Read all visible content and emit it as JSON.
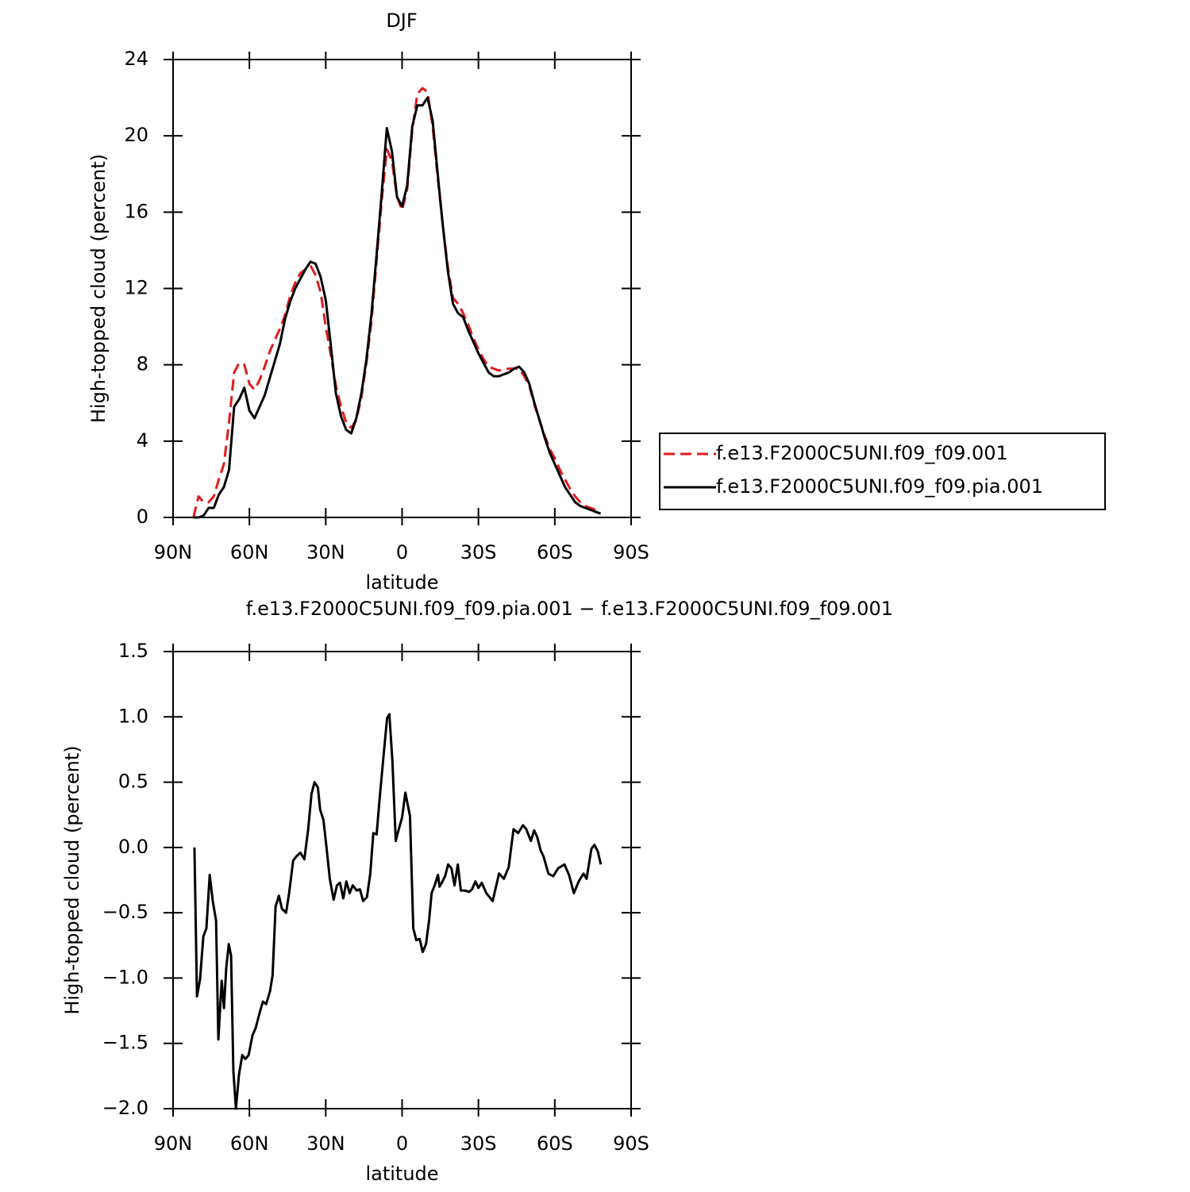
{
  "chart_data": [
    {
      "type": "line",
      "title": "DJF",
      "x_label": "latitude",
      "y_label": "High-topped cloud (percent)",
      "x": [
        82,
        80,
        78,
        76,
        74,
        72,
        70,
        68,
        66,
        64,
        62,
        60,
        58,
        56,
        54,
        52,
        50,
        48,
        46,
        44,
        42,
        40,
        38,
        36,
        34,
        32,
        30,
        28,
        26,
        24,
        22,
        20,
        18,
        16,
        14,
        12,
        10,
        8,
        6,
        4,
        2,
        0,
        -2,
        -4,
        -6,
        -8,
        -10,
        -12,
        -14,
        -16,
        -18,
        -20,
        -22,
        -24,
        -26,
        -28,
        -30,
        -32,
        -34,
        -36,
        -38,
        -40,
        -42,
        -44,
        -46,
        -48,
        -50,
        -52,
        -54,
        -56,
        -58,
        -60,
        -62,
        -64,
        -66,
        -68,
        -70,
        -72,
        -74,
        -76,
        -78
      ],
      "xlim": [
        90,
        -90
      ],
      "xticks": [
        {
          "value": 90,
          "label": "90N"
        },
        {
          "value": 60,
          "label": "60N"
        },
        {
          "value": 30,
          "label": "30N"
        },
        0,
        {
          "value": -30,
          "label": "30S"
        },
        {
          "value": -60,
          "label": "60S"
        },
        {
          "value": -90,
          "label": "90S"
        }
      ],
      "ylim": [
        0,
        24
      ],
      "yticks": [
        0,
        4,
        8,
        12,
        16,
        20,
        24
      ],
      "legend": "right",
      "series": [
        {
          "name": "f.e13.F2000C5UNI.f09_f09.001",
          "color": "#e41a1c",
          "style": "dashed",
          "values": [
            0,
            1.1,
            0.8,
            0.8,
            1.1,
            2.0,
            2.8,
            5.0,
            7.6,
            8.1,
            8.0,
            7.0,
            6.7,
            7.2,
            7.9,
            8.7,
            9.3,
            9.9,
            10.6,
            11.6,
            12.3,
            12.8,
            13.0,
            13.2,
            12.7,
            11.8,
            10.0,
            8.5,
            6.9,
            5.8,
            5.0,
            4.7,
            5.1,
            6.3,
            8.1,
            10.3,
            13.5,
            16.6,
            19.3,
            18.7,
            16.8,
            16.1,
            17.2,
            20.3,
            22.2,
            22.5,
            22.3,
            20.5,
            17.8,
            15.3,
            13.1,
            11.5,
            11.2,
            10.7,
            10.1,
            9.4,
            8.8,
            8.3,
            7.9,
            7.8,
            7.7,
            7.75,
            7.8,
            7.8,
            7.8,
            7.4,
            6.9,
            5.9,
            5.1,
            4.3,
            3.6,
            3.1,
            2.5,
            2.0,
            1.5,
            1.1,
            0.8,
            0.6,
            0.5,
            0.4,
            0.3
          ]
        },
        {
          "name": "f.e13.F2000C5UNI.f09_f09.pia.001",
          "color": "#000000",
          "style": "solid",
          "values": [
            0.0,
            0.0,
            0.1,
            0.5,
            0.5,
            1.2,
            1.6,
            2.5,
            5.8,
            6.2,
            6.8,
            5.6,
            5.2,
            5.8,
            6.4,
            7.3,
            8.2,
            9.1,
            10.4,
            11.3,
            12.0,
            12.5,
            13.0,
            13.4,
            13.3,
            12.6,
            11.4,
            9.0,
            6.5,
            5.3,
            4.6,
            4.4,
            5.2,
            6.5,
            8.3,
            10.7,
            13.8,
            17.0,
            20.4,
            19.2,
            16.8,
            16.3,
            17.4,
            20.5,
            21.6,
            21.6,
            22.0,
            20.8,
            18.0,
            15.3,
            12.9,
            11.2,
            10.7,
            10.5,
            9.8,
            9.2,
            8.6,
            8.1,
            7.6,
            7.4,
            7.4,
            7.5,
            7.6,
            7.8,
            7.9,
            7.6,
            7.0,
            6.0,
            5.1,
            4.2,
            3.4,
            2.8,
            2.2,
            1.6,
            1.2,
            0.8,
            0.6,
            0.5,
            0.4,
            0.3,
            0.2
          ]
        }
      ]
    },
    {
      "type": "line",
      "title": "f.e13.F2000C5UNI.f09_f09.pia.001 − f.e13.F2000C5UNI.f09_f09.001",
      "x_label": "latitude",
      "y_label": "High-topped cloud (percent)",
      "x": [
        81.6,
        80.6,
        79.4,
        78.1,
        76.9,
        75.6,
        74.4,
        73.1,
        72.2,
        70.9,
        70.0,
        69.1,
        68.1,
        67.2,
        66.3,
        65.3,
        64.1,
        62.8,
        61.6,
        60.3,
        58.8,
        57.5,
        55.9,
        54.7,
        53.4,
        51.9,
        50.9,
        49.7,
        48.4,
        47.2,
        45.6,
        44.4,
        42.8,
        41.6,
        40.0,
        38.4,
        36.9,
        35.6,
        34.4,
        33.1,
        32.2,
        30.9,
        29.7,
        28.4,
        26.9,
        25.6,
        24.4,
        23.1,
        21.9,
        20.6,
        19.4,
        17.8,
        16.6,
        15.3,
        13.8,
        12.5,
        11.3,
        10.0,
        8.8,
        7.2,
        5.9,
        5.0,
        3.8,
        2.5,
        1.3,
        0.0,
        -1.3,
        -3.1,
        -4.4,
        -5.6,
        -6.9,
        -8.1,
        -9.4,
        -10.6,
        -11.6,
        -12.8,
        -14.1,
        -14.7,
        -15.6,
        -16.9,
        -18.1,
        -19.4,
        -20.6,
        -21.9,
        -23.1,
        -24.7,
        -26.3,
        -27.5,
        -28.8,
        -30.0,
        -31.3,
        -33.1,
        -35.6,
        -38.1,
        -40.0,
        -41.9,
        -43.8,
        -45.6,
        -47.5,
        -48.8,
        -50.6,
        -51.9,
        -53.1,
        -54.4,
        -55.6,
        -57.5,
        -59.4,
        -61.3,
        -63.8,
        -65.6,
        -67.5,
        -69.4,
        -71.3,
        -72.5,
        -74.4,
        -75.6,
        -76.9,
        -78.1
      ],
      "xlim": [
        90,
        -90
      ],
      "xticks": [
        {
          "value": 90,
          "label": "90N"
        },
        {
          "value": 60,
          "label": "60N"
        },
        {
          "value": 30,
          "label": "30N"
        },
        0,
        {
          "value": -30,
          "label": "30S"
        },
        {
          "value": -60,
          "label": "60S"
        },
        {
          "value": -90,
          "label": "90S"
        }
      ],
      "ylim": [
        -2,
        1.5
      ],
      "yticks": [
        {
          "value": -2,
          "label": "−2.0"
        },
        {
          "value": -1.5,
          "label": "−1.5"
        },
        {
          "value": -1,
          "label": "−1.0"
        },
        {
          "value": -0.5,
          "label": "−0.5"
        },
        {
          "value": 0,
          "label": "0.0"
        },
        0.5,
        {
          "value": 1,
          "label": "1.0"
        },
        1.5
      ],
      "series": [
        {
          "color": "#000000",
          "style": "solid",
          "values": [
            0.0,
            -1.14,
            -1.01,
            -0.68,
            -0.62,
            -0.21,
            -0.41,
            -0.56,
            -1.47,
            -1.02,
            -1.23,
            -0.92,
            -0.74,
            -0.83,
            -1.71,
            -2.0,
            -1.74,
            -1.59,
            -1.62,
            -1.59,
            -1.44,
            -1.38,
            -1.26,
            -1.18,
            -1.2,
            -1.1,
            -0.98,
            -0.45,
            -0.37,
            -0.47,
            -0.5,
            -0.35,
            -0.1,
            -0.07,
            -0.04,
            -0.09,
            0.14,
            0.41,
            0.5,
            0.46,
            0.29,
            0.21,
            0.0,
            -0.24,
            -0.4,
            -0.29,
            -0.27,
            -0.39,
            -0.26,
            -0.35,
            -0.29,
            -0.33,
            -0.32,
            -0.41,
            -0.38,
            -0.2,
            0.11,
            0.1,
            0.38,
            0.72,
            0.99,
            1.02,
            0.66,
            0.05,
            0.14,
            0.23,
            0.42,
            0.24,
            -0.62,
            -0.71,
            -0.7,
            -0.8,
            -0.74,
            -0.56,
            -0.35,
            -0.29,
            -0.21,
            -0.3,
            -0.27,
            -0.22,
            -0.13,
            -0.16,
            -0.29,
            -0.13,
            -0.33,
            -0.33,
            -0.34,
            -0.32,
            -0.26,
            -0.31,
            -0.27,
            -0.35,
            -0.41,
            -0.2,
            -0.24,
            -0.15,
            0.14,
            0.11,
            0.17,
            0.14,
            0.05,
            0.13,
            0.08,
            -0.02,
            -0.07,
            -0.2,
            -0.22,
            -0.16,
            -0.13,
            -0.21,
            -0.35,
            -0.26,
            -0.2,
            -0.24,
            -0.01,
            0.02,
            -0.03,
            -0.13
          ]
        }
      ]
    }
  ]
}
